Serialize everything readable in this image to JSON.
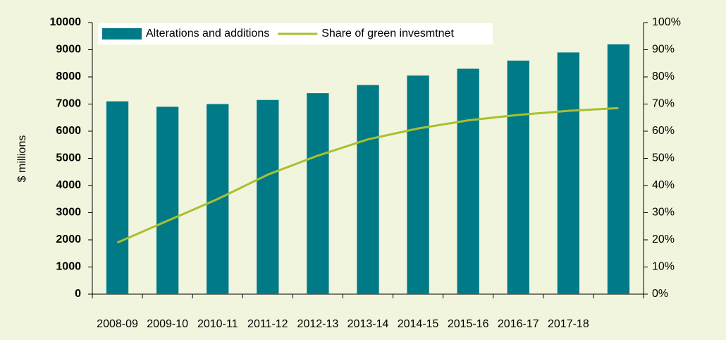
{
  "chart_data": {
    "type": "bar",
    "categories": [
      "2008-09",
      "2009-10",
      "2010-11",
      "2011-12",
      "2012-13",
      "2013-14",
      "2014-15",
      "2015-16",
      "2016-17",
      "2017-18",
      null
    ],
    "series": [
      {
        "name": "Alterations and additions",
        "type": "bar",
        "color": "#007a87",
        "axis": "y",
        "values": [
          7100,
          6900,
          7000,
          7150,
          7400,
          7700,
          8050,
          8300,
          8600,
          8900,
          9200
        ]
      },
      {
        "name": "Share of green invesmtnet",
        "type": "line",
        "color": "#a8c030",
        "axis": "y2",
        "values": [
          19,
          27,
          35,
          44,
          51,
          57,
          61,
          64,
          66,
          67.5,
          68.5
        ]
      }
    ],
    "ylabel": "$ millions",
    "ylim": [
      0,
      10000
    ],
    "yticks": [
      0,
      1000,
      2000,
      3000,
      4000,
      5000,
      6000,
      7000,
      8000,
      9000,
      10000
    ],
    "y2lim": [
      0,
      100
    ],
    "y2ticks": [
      {
        "value": 0,
        "label": "0%"
      },
      {
        "value": 10,
        "label": "10%"
      },
      {
        "value": 20,
        "label": "20%"
      },
      {
        "value": 30,
        "label": "30%"
      },
      {
        "value": 40,
        "label": "40%"
      },
      {
        "value": 50,
        "label": "50%"
      },
      {
        "value": 60,
        "label": "60%"
      },
      {
        "value": 70,
        "label": "70%"
      },
      {
        "value": 80,
        "label": "80%"
      },
      {
        "value": 90,
        "label": "90%"
      },
      {
        "value": 100,
        "label": "100%"
      }
    ],
    "legend": "top"
  }
}
